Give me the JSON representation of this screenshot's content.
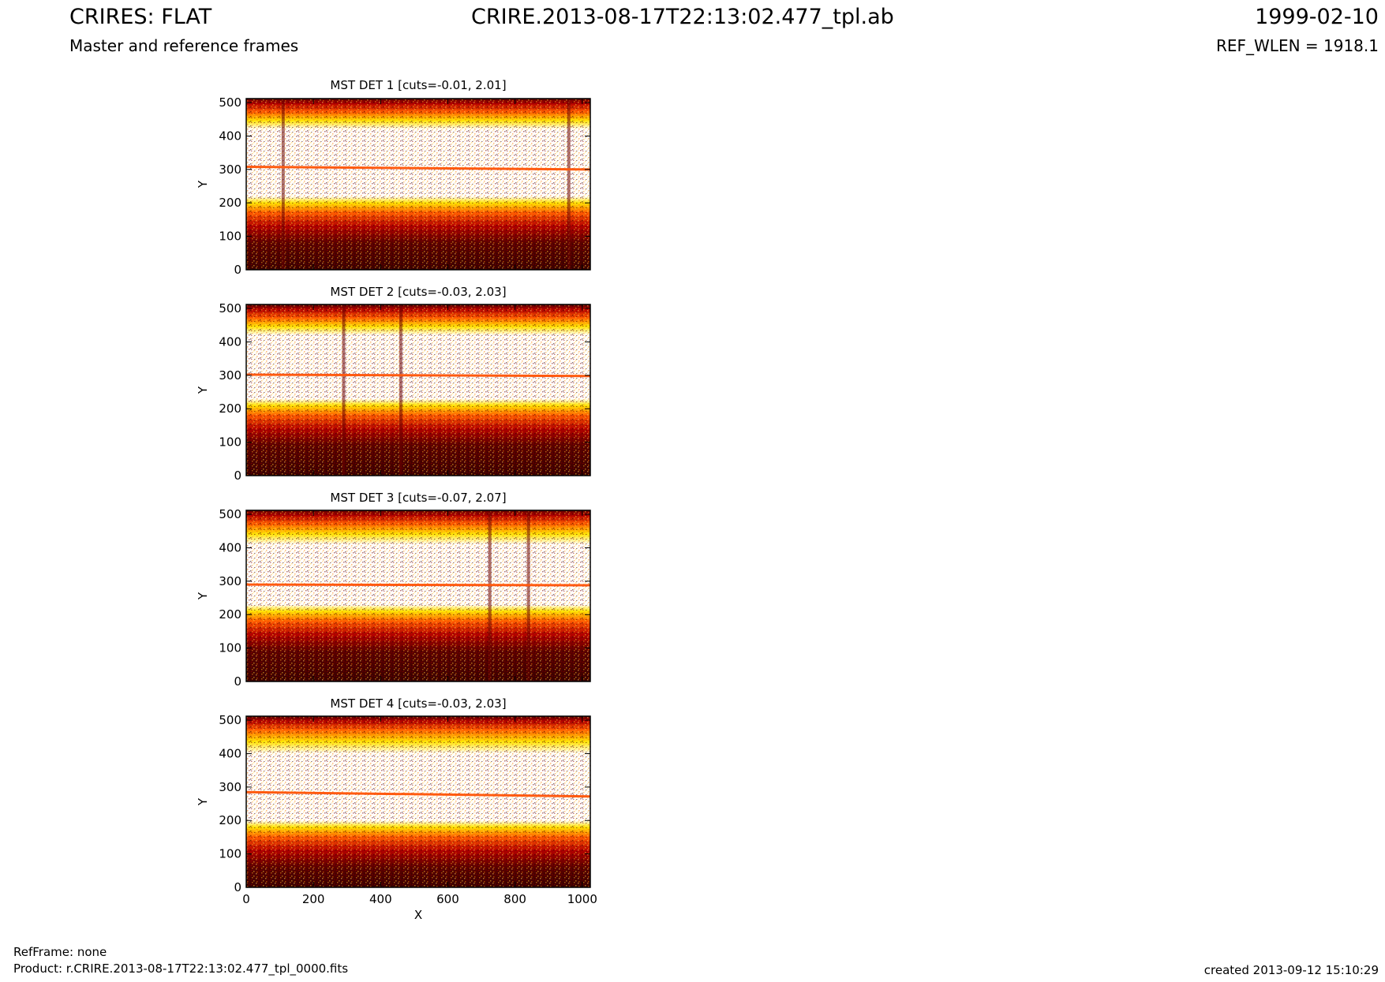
{
  "header": {
    "title": "CRIRES: FLAT",
    "subtitle": "Master and reference frames",
    "file_id": "CRIRE.2013-08-17T22:13:02.477_tpl.ab",
    "date": "1999-02-10",
    "ref_wlen": "REF_WLEN = 1918.1"
  },
  "footer": {
    "ref_frame": "RefFrame: none",
    "product": "Product: r.CRIRE.2013-08-17T22:13:02.477_tpl_0000.fits",
    "created": "created 2013-09-12 15:10:29"
  },
  "colors": {
    "hot_dark": "#5a0000",
    "hot_red": "#b40000",
    "hot_orange": "#ff5a00",
    "hot_yellow": "#ffe600",
    "hot_white": "#ffffff",
    "line_orange": "#ff5a10"
  },
  "chart_data": [
    {
      "type": "heatmap",
      "title": "MST DET 1 [cuts=-0.01, 2.01]",
      "ylabel": "Y",
      "xlabel": "",
      "xlim": [
        0,
        1024
      ],
      "ylim": [
        0,
        512
      ],
      "yticks": [
        "0",
        "100",
        "200",
        "300",
        "400",
        "500"
      ],
      "xticks": [],
      "colormap": "hot",
      "bright_band_y": [
        220,
        420
      ],
      "trace_line_y": [
        308,
        300
      ],
      "dark_columns_x": [
        110,
        960
      ]
    },
    {
      "type": "heatmap",
      "title": "MST DET 2 [cuts=-0.03, 2.03]",
      "ylabel": "Y",
      "xlabel": "",
      "xlim": [
        0,
        1024
      ],
      "ylim": [
        0,
        512
      ],
      "yticks": [
        "0",
        "100",
        "200",
        "300",
        "400",
        "500"
      ],
      "xticks": [],
      "colormap": "hot",
      "bright_band_y": [
        230,
        420
      ],
      "trace_line_y": [
        302,
        298
      ],
      "dark_columns_x": [
        290,
        460
      ]
    },
    {
      "type": "heatmap",
      "title": "MST DET 3 [cuts=-0.07, 2.07]",
      "ylabel": "Y",
      "xlabel": "",
      "xlim": [
        0,
        1024
      ],
      "ylim": [
        0,
        512
      ],
      "yticks": [
        "0",
        "100",
        "200",
        "300",
        "400",
        "500"
      ],
      "xticks": [],
      "colormap": "hot",
      "bright_band_y": [
        230,
        410
      ],
      "trace_line_y": [
        290,
        288
      ],
      "dark_columns_x": [
        725,
        840
      ]
    },
    {
      "type": "heatmap",
      "title": "MST DET 4 [cuts=-0.03, 2.03]",
      "ylabel": "Y",
      "xlabel": "X",
      "xlim": [
        0,
        1024
      ],
      "ylim": [
        0,
        512
      ],
      "yticks": [
        "0",
        "100",
        "200",
        "300",
        "400",
        "500"
      ],
      "xticks": [
        "0",
        "200",
        "400",
        "600",
        "800",
        "1000"
      ],
      "colormap": "hot",
      "bright_band_y": [
        200,
        400
      ],
      "trace_line_y": [
        285,
        272
      ],
      "dark_columns_x": []
    }
  ]
}
